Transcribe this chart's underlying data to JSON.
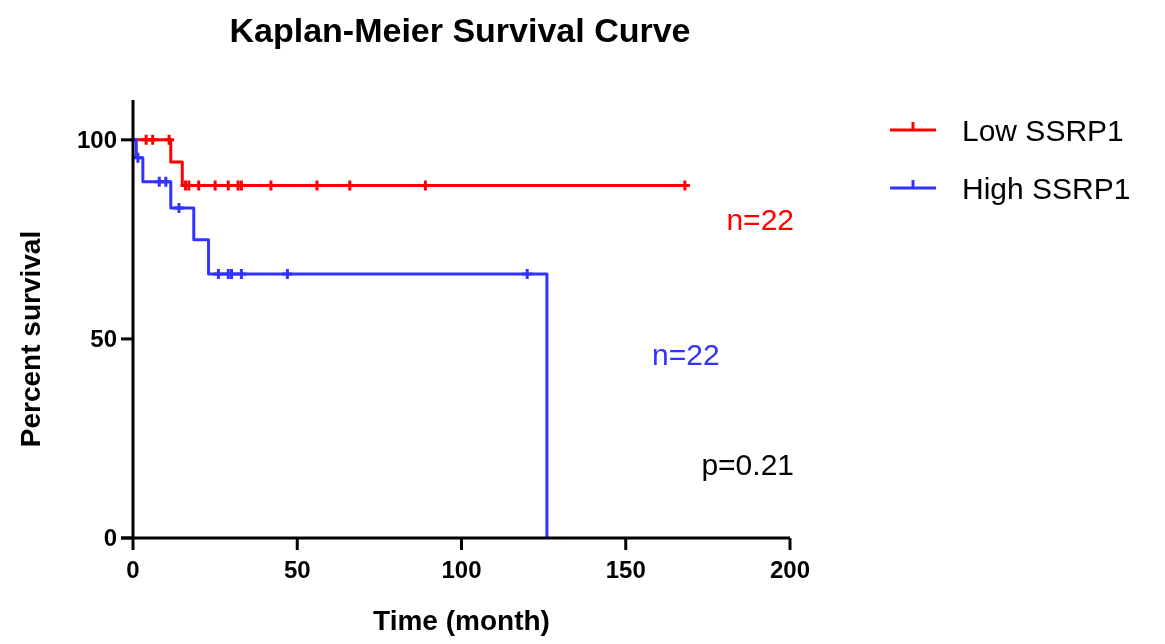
{
  "chart_data": {
    "type": "step",
    "title": "Kaplan-Meier Survival Curve",
    "xlabel": "Time (month)",
    "ylabel": "Percent survival",
    "xlim": [
      0,
      200
    ],
    "xticks": [
      0,
      50,
      100,
      150,
      200
    ],
    "ylim": [
      0,
      110
    ],
    "yticks": [
      0,
      50,
      100
    ],
    "grid": false,
    "legend": "right",
    "line_style": "solid",
    "series": [
      {
        "name": "Low SSRP1",
        "color": "#ff0000",
        "x": [
          0,
          11.5,
          15,
          168
        ],
        "values": [
          100,
          94.4,
          88.5,
          88.5
        ]
      },
      {
        "name": "High SSRP1",
        "color": "#3333ff",
        "x": [
          0,
          1,
          3,
          11.5,
          18.5,
          23,
          126
        ],
        "values": [
          100,
          95.5,
          89.5,
          82.9,
          74.9,
          66.3,
          0
        ]
      },
      {
        "type": "scatter",
        "marker": "cross",
        "color": "#ff0000",
        "x": [
          4,
          6,
          11,
          16,
          17,
          20,
          25,
          29,
          32,
          33,
          42,
          56,
          66,
          89,
          168
        ],
        "values": [
          100,
          100,
          100,
          88.5,
          88.5,
          88.5,
          88.5,
          88.5,
          88.5,
          88.5,
          88.5,
          88.5,
          88.5,
          88.5,
          88.5
        ]
      },
      {
        "type": "scatter",
        "marker": "cross",
        "color": "#3333ff",
        "x": [
          1.5,
          8,
          10,
          14,
          26,
          29,
          30,
          33,
          47,
          120
        ],
        "values": [
          95.5,
          89.5,
          89.5,
          82.9,
          66.3,
          66.3,
          66.3,
          66.3,
          66.3,
          66.3
        ]
      }
    ],
    "annotations": [
      "n=22",
      "n=22",
      "p=0.21"
    ]
  }
}
